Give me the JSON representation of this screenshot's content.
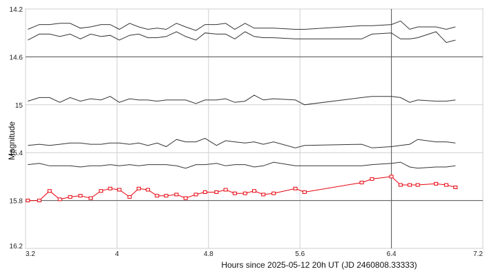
{
  "chart_data": {
    "type": "line",
    "title": "",
    "xlabel": "Hours since 2025-05-12 20h UT (JD 2460808.33333)",
    "ylabel": "Magnitude",
    "xlim": [
      3.2,
      7.2
    ],
    "ylim": [
      14.2,
      16.2
    ],
    "y_inverted": true,
    "grid": true,
    "x_ticks": [
      "3.2",
      "4",
      "4.8",
      "5.6",
      "6.4",
      "7.2"
    ],
    "y_ticks": [
      "14.2",
      "14.6",
      "15",
      "15.4",
      "15.8",
      "16.2"
    ],
    "x_values": [
      3.22,
      3.32,
      3.41,
      3.5,
      3.59,
      3.68,
      3.77,
      3.86,
      3.94,
      4.02,
      4.11,
      4.19,
      4.27,
      4.35,
      4.43,
      4.52,
      4.6,
      4.69,
      4.77,
      4.87,
      4.95,
      5.03,
      5.12,
      5.2,
      5.28,
      5.37,
      5.56,
      5.64,
      6.14,
      6.23,
      6.4,
      6.48,
      6.56,
      6.63,
      6.79,
      6.88,
      6.96
    ],
    "series": [
      {
        "color": "#333333",
        "marker": false,
        "values": [
          14.37,
          14.33,
          14.33,
          14.32,
          14.32,
          14.36,
          14.35,
          14.33,
          14.33,
          14.37,
          14.32,
          14.35,
          14.37,
          14.36,
          14.37,
          14.32,
          14.35,
          14.38,
          14.33,
          14.33,
          14.32,
          14.37,
          14.32,
          14.36,
          14.36,
          14.36,
          14.37,
          14.37,
          14.34,
          14.34,
          14.33,
          14.3,
          14.37,
          14.35,
          14.35,
          14.37,
          14.35
        ]
      },
      {
        "color": "#333333",
        "marker": false,
        "values": [
          14.46,
          14.41,
          14.41,
          14.43,
          14.41,
          14.45,
          14.41,
          14.43,
          14.42,
          14.46,
          14.42,
          14.41,
          14.44,
          14.44,
          14.43,
          14.39,
          14.43,
          14.46,
          14.4,
          14.41,
          14.41,
          14.45,
          14.39,
          14.43,
          14.44,
          14.44,
          14.45,
          14.45,
          14.45,
          14.41,
          14.4,
          14.45,
          14.45,
          14.44,
          14.39,
          14.48,
          14.46
        ]
      },
      {
        "color": "#333333",
        "marker": false,
        "values": [
          14.97,
          14.94,
          14.94,
          14.98,
          14.94,
          14.97,
          14.95,
          14.96,
          14.93,
          14.98,
          14.95,
          14.96,
          14.96,
          14.97,
          14.96,
          14.96,
          14.96,
          14.99,
          14.96,
          14.96,
          14.95,
          14.98,
          14.97,
          14.92,
          14.96,
          14.95,
          14.96,
          15.0,
          14.94,
          14.93,
          14.93,
          14.94,
          14.98,
          14.96,
          14.97,
          14.97,
          14.96
        ]
      },
      {
        "color": "#333333",
        "marker": false,
        "values": [
          15.34,
          15.33,
          15.34,
          15.33,
          15.32,
          15.32,
          15.33,
          15.33,
          15.32,
          15.32,
          15.33,
          15.32,
          15.34,
          15.32,
          15.35,
          15.29,
          15.31,
          15.31,
          15.28,
          15.34,
          15.3,
          15.31,
          15.32,
          15.31,
          15.33,
          15.31,
          15.36,
          15.34,
          15.33,
          15.36,
          15.35,
          15.34,
          15.33,
          15.29,
          15.31,
          15.31,
          15.32
        ]
      },
      {
        "color": "#333333",
        "marker": false,
        "values": [
          15.5,
          15.49,
          15.51,
          15.51,
          15.51,
          15.52,
          15.51,
          15.51,
          15.5,
          15.51,
          15.5,
          15.51,
          15.5,
          15.5,
          15.5,
          15.51,
          15.53,
          15.5,
          15.5,
          15.49,
          15.51,
          15.5,
          15.5,
          15.52,
          15.51,
          15.48,
          15.51,
          15.51,
          15.51,
          15.5,
          15.49,
          15.48,
          15.52,
          15.53,
          15.52,
          15.52,
          15.51
        ]
      },
      {
        "color": "#e8000b",
        "marker": true,
        "values": [
          15.8,
          15.8,
          15.72,
          15.79,
          15.77,
          15.76,
          15.78,
          15.72,
          15.7,
          15.71,
          15.77,
          15.7,
          15.71,
          15.76,
          15.76,
          15.75,
          15.78,
          15.75,
          15.73,
          15.73,
          15.71,
          15.74,
          15.74,
          15.72,
          15.75,
          15.74,
          15.7,
          15.73,
          15.65,
          15.62,
          15.6,
          15.67,
          15.67,
          15.67,
          15.66,
          15.67,
          15.69
        ]
      }
    ]
  }
}
